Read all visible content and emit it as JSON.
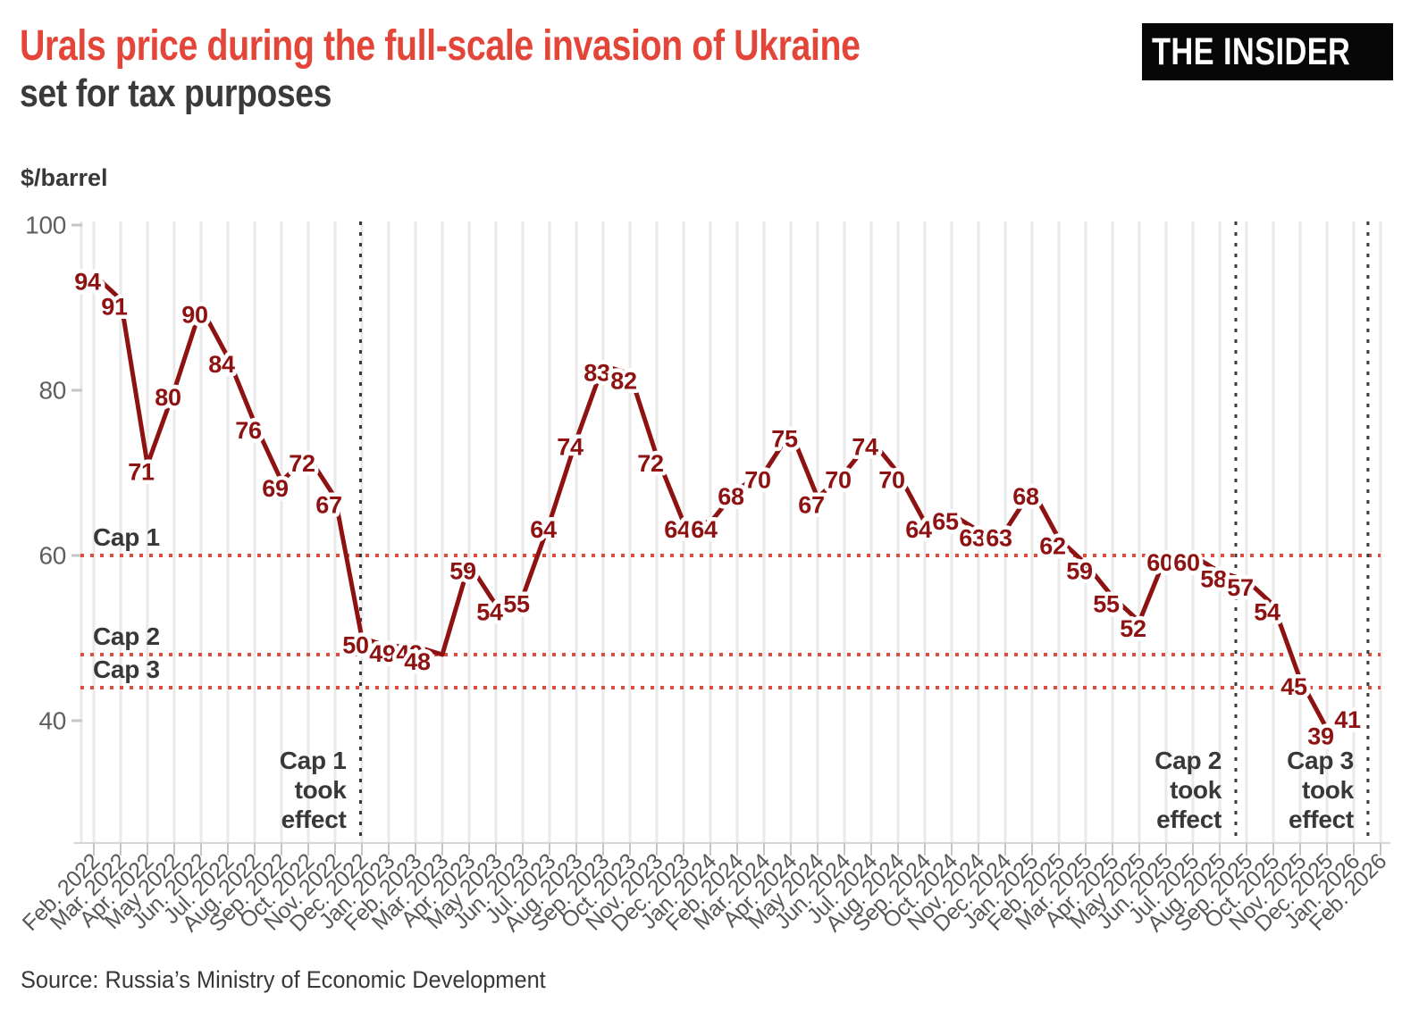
{
  "header": {
    "title": "Urals price during the full-scale invasion of Ukraine",
    "subtitle": "set for tax purposes",
    "logo_text": "THE INSIDER"
  },
  "footer": {
    "source": "Source: Russia’s Ministry of Economic Development"
  },
  "chart_data": {
    "type": "line",
    "title": "Urals price during the full-scale invasion of Ukraine set for tax purposes",
    "ylabel": "$/barrel",
    "xlabel": "",
    "yticks": [
      40,
      60,
      80,
      100
    ],
    "ylim": [
      33,
      102
    ],
    "grid": "vertical-monthly",
    "legend": "none",
    "categories": [
      "Feb. 2022",
      "Mar. 2022",
      "Apr. 2022",
      "May 2022",
      "Jun. 2022",
      "Jul. 2022",
      "Aug. 2022",
      "Sep. 2022",
      "Oct. 2022",
      "Nov. 2022",
      "Dec. 2022",
      "Jan. 2023",
      "Feb. 2023",
      "Mar. 2023",
      "Apr. 2023",
      "May 2023",
      "Jun. 2023",
      "Jul. 2023",
      "Aug. 2023",
      "Sep. 2023",
      "Oct. 2023",
      "Nov. 2023",
      "Dec. 2023",
      "Jan. 2024",
      "Feb. 2024",
      "Mar. 2024",
      "Apr. 2024",
      "May 2024",
      "Jun. 2024",
      "Jul. 2024",
      "Aug. 2024",
      "Sep. 2024",
      "Oct. 2024",
      "Nov. 2024",
      "Dec. 2024",
      "Jan. 2025",
      "Feb. 2025",
      "Mar. 2025",
      "Apr. 2025",
      "May 2025",
      "Jun. 2025",
      "Jul. 2025",
      "Aug. 2025",
      "Sep. 2025",
      "Oct. 2025",
      "Nov. 2025",
      "Dec. 2025",
      "Jan. 2026",
      "Feb. 2026"
    ],
    "series": [
      {
        "name": "Urals price set for tax purposes, $/barrel",
        "color": "#8e1212",
        "values": [
          94,
          91,
          71,
          80,
          90,
          84,
          76,
          69,
          72,
          67,
          50,
          49,
          49,
          48,
          59,
          54,
          55,
          64,
          74,
          83,
          82,
          72,
          64,
          64,
          68,
          70,
          75,
          67,
          70,
          74,
          70,
          64,
          65,
          63,
          63,
          68,
          62,
          59,
          55,
          52,
          60,
          60,
          58,
          57,
          54,
          45,
          39,
          41
        ]
      }
    ],
    "cap_lines": [
      {
        "label": "Cap 1",
        "value": 60
      },
      {
        "label": "Cap 2",
        "value": 48
      },
      {
        "label": "Cap 3",
        "value": 44
      }
    ],
    "events": [
      {
        "label_lines": [
          "Cap 1",
          "took",
          "effect"
        ],
        "month_index": 9.95
      },
      {
        "label_lines": [
          "Cap 2",
          "took",
          "effect"
        ],
        "month_index": 42.6
      },
      {
        "label_lines": [
          "Cap 3",
          "took",
          "effect"
        ],
        "month_index": 47.53
      }
    ],
    "colors": {
      "line": "#8e1212",
      "cap_line": "#dd4e3e",
      "event_line": "#3a3a3a",
      "title": "#e34638",
      "subtitle": "#3a3a3a",
      "grid": "#e9e9e9",
      "tick": "#c6c6c6",
      "axis_text": "#5f5f5f"
    }
  }
}
